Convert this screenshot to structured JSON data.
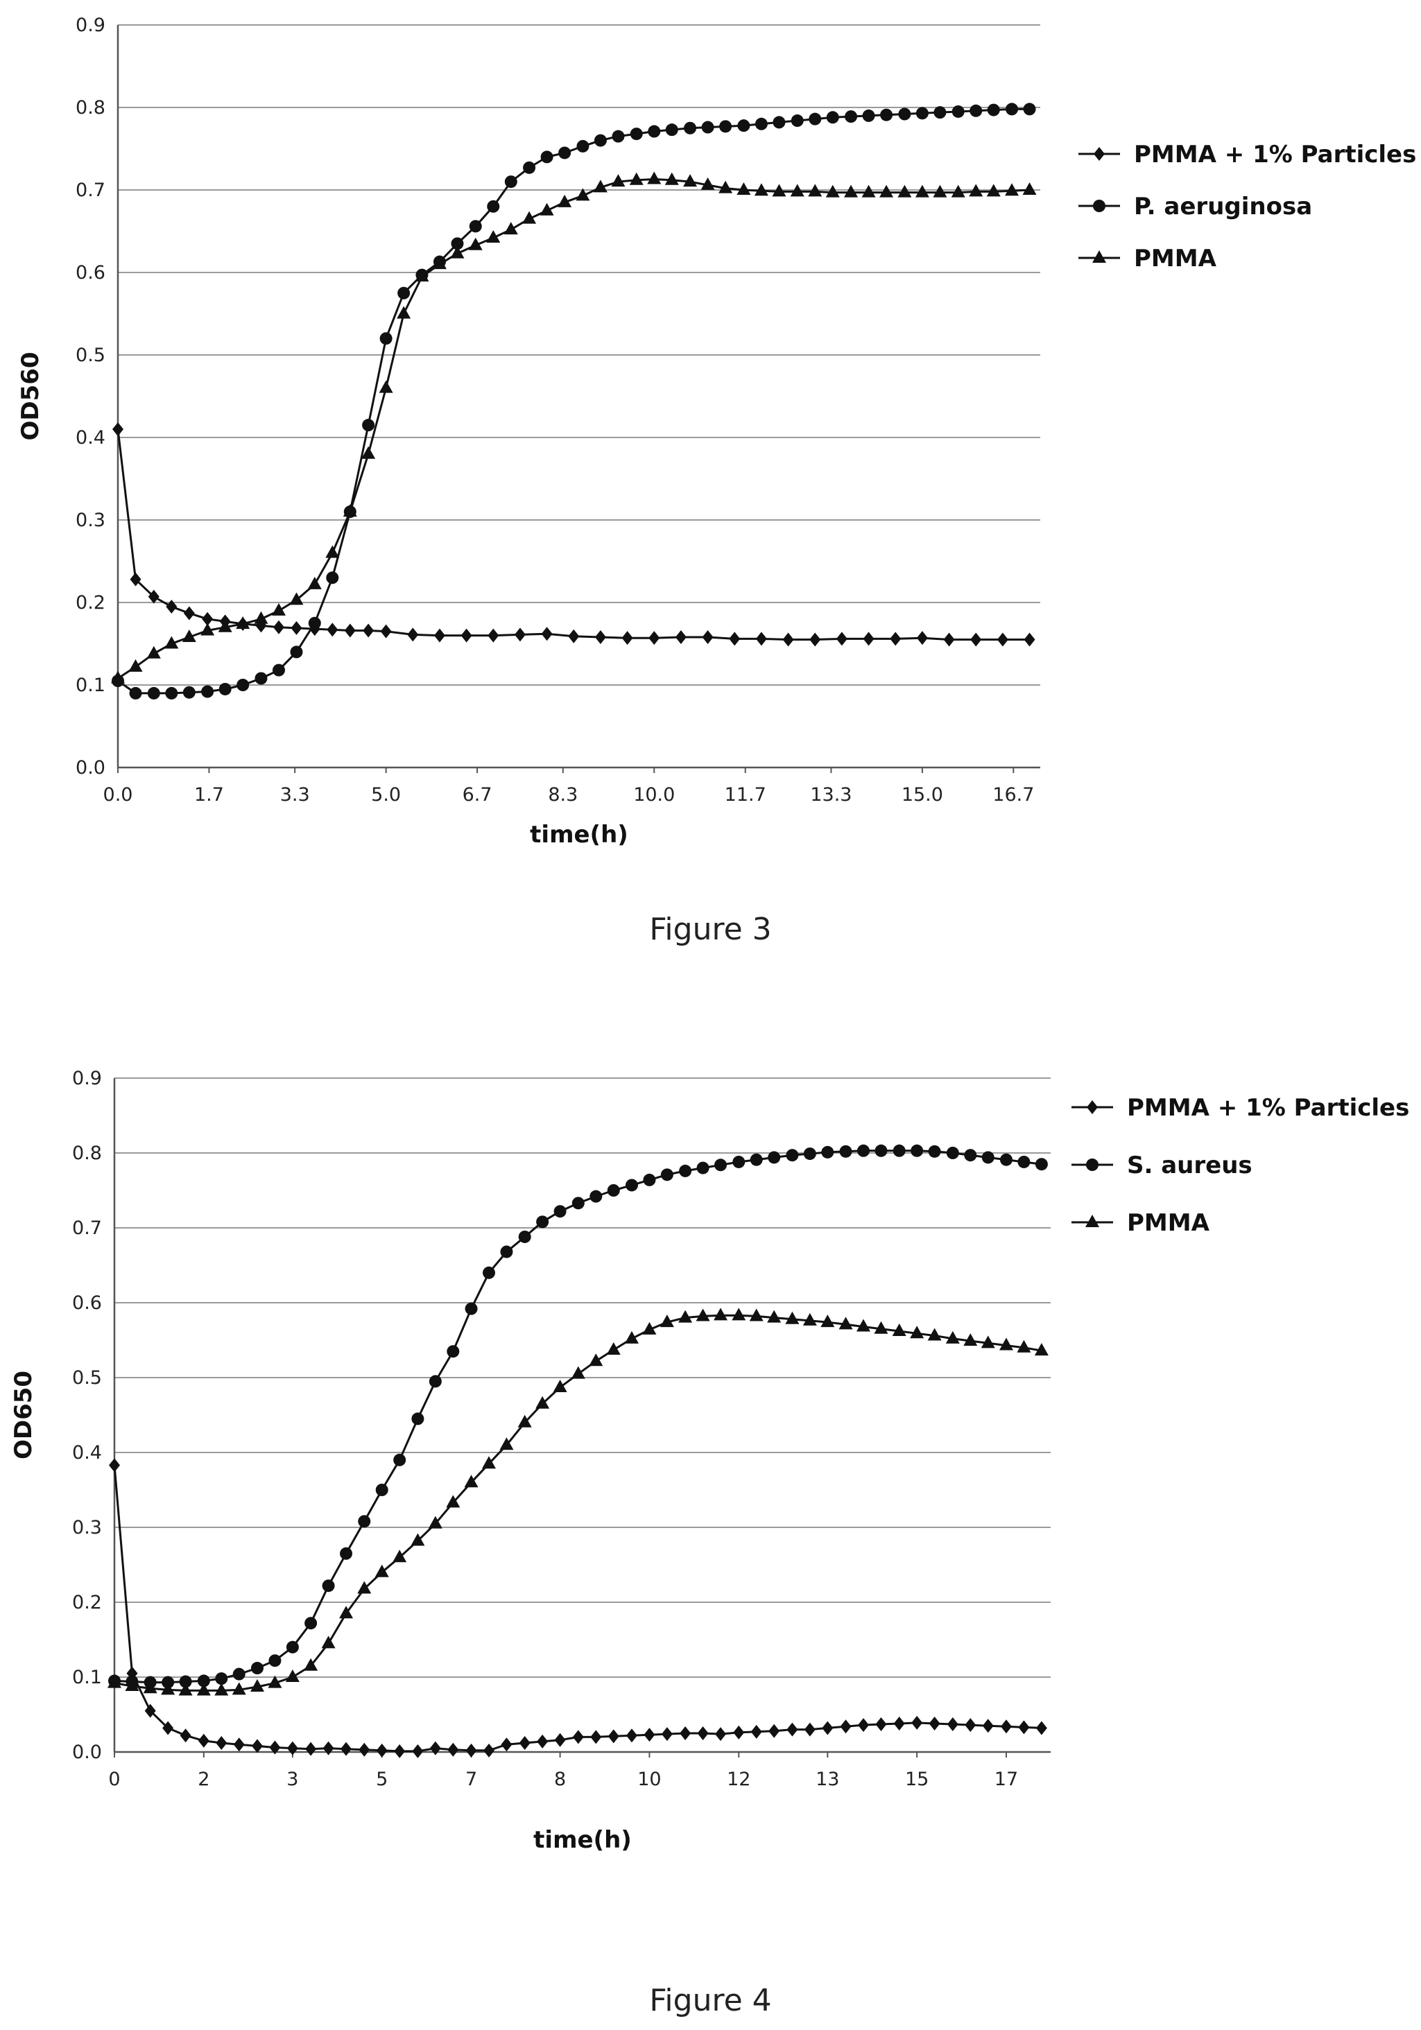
{
  "chart_data": [
    {
      "type": "line",
      "caption": "Figure 3",
      "xlabel": "time(h)",
      "ylabel": "OD560",
      "xlim": [
        0,
        17.2
      ],
      "ylim": [
        0,
        0.9
      ],
      "yticks": [
        "0.0",
        "0.1",
        "0.2",
        "0.3",
        "0.4",
        "0.5",
        "0.6",
        "0.7",
        "0.8",
        "0.9"
      ],
      "xticks": [
        {
          "v": 0.0,
          "label": "0.0"
        },
        {
          "v": 1.7,
          "label": "1.7"
        },
        {
          "v": 3.3,
          "label": "3.3"
        },
        {
          "v": 5.0,
          "label": "5.0"
        },
        {
          "v": 6.7,
          "label": "6.7"
        },
        {
          "v": 8.3,
          "label": "8.3"
        },
        {
          "v": 10.0,
          "label": "10.0"
        },
        {
          "v": 11.7,
          "label": "11.7"
        },
        {
          "v": 13.3,
          "label": "13.3"
        },
        {
          "v": 15.0,
          "label": "15.0"
        },
        {
          "v": 16.7,
          "label": "16.7"
        }
      ],
      "grid": "horizontal",
      "legend": "right",
      "series": [
        {
          "name": "PMMA + 1% Particles",
          "marker": "diamond",
          "x": [
            0,
            0.33,
            0.67,
            1.0,
            1.33,
            1.67,
            2.0,
            2.33,
            2.67,
            3.0,
            3.33,
            3.67,
            4.0,
            4.33,
            4.67,
            5.0,
            5.5,
            6.0,
            6.5,
            7.0,
            7.5,
            8.0,
            8.5,
            9.0,
            9.5,
            10.0,
            10.5,
            11.0,
            11.5,
            12.0,
            12.5,
            13.0,
            13.5,
            14.0,
            14.5,
            15.0,
            15.5,
            16.0,
            16.5,
            17.0
          ],
          "y": [
            0.41,
            0.228,
            0.207,
            0.195,
            0.187,
            0.18,
            0.177,
            0.174,
            0.172,
            0.17,
            0.169,
            0.168,
            0.167,
            0.166,
            0.166,
            0.165,
            0.161,
            0.16,
            0.16,
            0.16,
            0.161,
            0.162,
            0.159,
            0.158,
            0.157,
            0.157,
            0.158,
            0.158,
            0.156,
            0.156,
            0.155,
            0.155,
            0.156,
            0.156,
            0.156,
            0.157,
            0.155,
            0.155,
            0.155,
            0.155
          ]
        },
        {
          "name": "P. aeruginosa",
          "marker": "circle",
          "x": [
            0,
            0.33,
            0.67,
            1.0,
            1.33,
            1.67,
            2.0,
            2.33,
            2.67,
            3.0,
            3.33,
            3.67,
            4.0,
            4.33,
            4.67,
            5.0,
            5.33,
            5.67,
            6.0,
            6.33,
            6.67,
            7.0,
            7.33,
            7.67,
            8.0,
            8.33,
            8.67,
            9.0,
            9.33,
            9.67,
            10.0,
            10.33,
            10.67,
            11.0,
            11.33,
            11.67,
            12.0,
            12.33,
            12.67,
            13.0,
            13.33,
            13.67,
            14.0,
            14.33,
            14.67,
            15.0,
            15.33,
            15.67,
            16.0,
            16.33,
            16.67,
            17.0
          ],
          "y": [
            0.105,
            0.09,
            0.09,
            0.09,
            0.091,
            0.092,
            0.095,
            0.1,
            0.108,
            0.118,
            0.14,
            0.175,
            0.23,
            0.31,
            0.415,
            0.52,
            0.575,
            0.597,
            0.613,
            0.635,
            0.656,
            0.68,
            0.71,
            0.727,
            0.74,
            0.745,
            0.753,
            0.76,
            0.765,
            0.768,
            0.771,
            0.773,
            0.775,
            0.776,
            0.777,
            0.778,
            0.78,
            0.782,
            0.784,
            0.786,
            0.788,
            0.789,
            0.79,
            0.791,
            0.792,
            0.793,
            0.794,
            0.795,
            0.796,
            0.797,
            0.798,
            0.798
          ]
        },
        {
          "name": "PMMA",
          "marker": "triangle",
          "x": [
            0,
            0.33,
            0.67,
            1.0,
            1.33,
            1.67,
            2.0,
            2.33,
            2.67,
            3.0,
            3.33,
            3.67,
            4.0,
            4.33,
            4.67,
            5.0,
            5.33,
            5.67,
            6.0,
            6.33,
            6.67,
            7.0,
            7.33,
            7.67,
            8.0,
            8.33,
            8.67,
            9.0,
            9.33,
            9.67,
            10.0,
            10.33,
            10.67,
            11.0,
            11.33,
            11.67,
            12.0,
            12.33,
            12.67,
            13.0,
            13.33,
            13.67,
            14.0,
            14.33,
            14.67,
            15.0,
            15.33,
            15.67,
            16.0,
            16.33,
            16.67,
            17.0
          ],
          "y": [
            0.108,
            0.122,
            0.138,
            0.15,
            0.158,
            0.166,
            0.17,
            0.174,
            0.18,
            0.19,
            0.203,
            0.222,
            0.26,
            0.31,
            0.38,
            0.46,
            0.55,
            0.595,
            0.61,
            0.623,
            0.633,
            0.642,
            0.652,
            0.665,
            0.675,
            0.685,
            0.693,
            0.703,
            0.71,
            0.712,
            0.713,
            0.712,
            0.71,
            0.706,
            0.702,
            0.7,
            0.699,
            0.698,
            0.698,
            0.698,
            0.697,
            0.697,
            0.697,
            0.697,
            0.697,
            0.697,
            0.697,
            0.697,
            0.698,
            0.698,
            0.699,
            0.7
          ]
        }
      ]
    },
    {
      "type": "line",
      "caption": "Figure 4",
      "xlabel": "time(h)",
      "ylabel": "OD650",
      "xlim": [
        0,
        17.5
      ],
      "ylim": [
        0,
        0.9
      ],
      "yticks": [
        "0.0",
        "0.1",
        "0.2",
        "0.3",
        "0.4",
        "0.5",
        "0.6",
        "0.7",
        "0.8",
        "0.9"
      ],
      "xticks": [
        {
          "v": 0,
          "label": "0"
        },
        {
          "v": 1.67,
          "label": "2"
        },
        {
          "v": 3.33,
          "label": "3"
        },
        {
          "v": 5.0,
          "label": "5"
        },
        {
          "v": 6.67,
          "label": "7"
        },
        {
          "v": 8.33,
          "label": "8"
        },
        {
          "v": 10.0,
          "label": "10"
        },
        {
          "v": 11.67,
          "label": "12"
        },
        {
          "v": 13.33,
          "label": "13"
        },
        {
          "v": 15.0,
          "label": "15"
        },
        {
          "v": 16.67,
          "label": "17"
        }
      ],
      "grid": "horizontal",
      "legend": "right",
      "series": [
        {
          "name": "PMMA + 1% Particles",
          "marker": "diamond",
          "x": [
            0,
            0.33,
            0.67,
            1.0,
            1.33,
            1.67,
            2.0,
            2.33,
            2.67,
            3.0,
            3.33,
            3.67,
            4.0,
            4.33,
            4.67,
            5.0,
            5.33,
            5.67,
            6.0,
            6.33,
            6.67,
            7.0,
            7.33,
            7.67,
            8.0,
            8.33,
            8.67,
            9.0,
            9.33,
            9.67,
            10.0,
            10.33,
            10.67,
            11.0,
            11.33,
            11.67,
            12.0,
            12.33,
            12.67,
            13.0,
            13.33,
            13.67,
            14.0,
            14.33,
            14.67,
            15.0,
            15.33,
            15.67,
            16.0,
            16.33,
            16.67,
            17.0,
            17.33
          ],
          "y": [
            0.383,
            0.105,
            0.055,
            0.032,
            0.022,
            0.015,
            0.012,
            0.01,
            0.008,
            0.006,
            0.005,
            0.004,
            0.005,
            0.004,
            0.003,
            0.002,
            0.001,
            0.001,
            0.005,
            0.003,
            0.002,
            0.002,
            0.01,
            0.012,
            0.014,
            0.016,
            0.02,
            0.02,
            0.021,
            0.022,
            0.023,
            0.024,
            0.025,
            0.025,
            0.024,
            0.026,
            0.027,
            0.028,
            0.03,
            0.03,
            0.032,
            0.034,
            0.036,
            0.037,
            0.038,
            0.039,
            0.038,
            0.037,
            0.036,
            0.035,
            0.034,
            0.033,
            0.032
          ]
        },
        {
          "name": "S. aureus",
          "marker": "circle",
          "x": [
            0,
            0.33,
            0.67,
            1.0,
            1.33,
            1.67,
            2.0,
            2.33,
            2.67,
            3.0,
            3.33,
            3.67,
            4.0,
            4.33,
            4.67,
            5.0,
            5.33,
            5.67,
            6.0,
            6.33,
            6.67,
            7.0,
            7.33,
            7.67,
            8.0,
            8.33,
            8.67,
            9.0,
            9.33,
            9.67,
            10.0,
            10.33,
            10.67,
            11.0,
            11.33,
            11.67,
            12.0,
            12.33,
            12.67,
            13.0,
            13.33,
            13.67,
            14.0,
            14.33,
            14.67,
            15.0,
            15.33,
            15.67,
            16.0,
            16.33,
            16.67,
            17.0,
            17.33
          ],
          "y": [
            0.095,
            0.094,
            0.093,
            0.093,
            0.094,
            0.095,
            0.098,
            0.104,
            0.112,
            0.122,
            0.14,
            0.172,
            0.222,
            0.265,
            0.308,
            0.35,
            0.39,
            0.445,
            0.495,
            0.535,
            0.592,
            0.64,
            0.668,
            0.688,
            0.708,
            0.722,
            0.733,
            0.742,
            0.75,
            0.757,
            0.764,
            0.771,
            0.776,
            0.78,
            0.784,
            0.788,
            0.791,
            0.794,
            0.797,
            0.799,
            0.801,
            0.802,
            0.803,
            0.803,
            0.803,
            0.803,
            0.802,
            0.8,
            0.797,
            0.794,
            0.791,
            0.788,
            0.785
          ]
        },
        {
          "name": "PMMA",
          "marker": "triangle",
          "x": [
            0,
            0.33,
            0.67,
            1.0,
            1.33,
            1.67,
            2.0,
            2.33,
            2.67,
            3.0,
            3.33,
            3.67,
            4.0,
            4.33,
            4.67,
            5.0,
            5.33,
            5.67,
            6.0,
            6.33,
            6.67,
            7.0,
            7.33,
            7.67,
            8.0,
            8.33,
            8.67,
            9.0,
            9.33,
            9.67,
            10.0,
            10.33,
            10.67,
            11.0,
            11.33,
            11.67,
            12.0,
            12.33,
            12.67,
            13.0,
            13.33,
            13.67,
            14.0,
            14.33,
            14.67,
            15.0,
            15.33,
            15.67,
            16.0,
            16.33,
            16.67,
            17.0,
            17.33
          ],
          "y": [
            0.092,
            0.088,
            0.085,
            0.083,
            0.082,
            0.082,
            0.082,
            0.083,
            0.087,
            0.092,
            0.1,
            0.115,
            0.145,
            0.185,
            0.218,
            0.24,
            0.26,
            0.282,
            0.305,
            0.333,
            0.36,
            0.385,
            0.41,
            0.44,
            0.465,
            0.487,
            0.505,
            0.522,
            0.537,
            0.552,
            0.564,
            0.574,
            0.58,
            0.582,
            0.583,
            0.583,
            0.582,
            0.58,
            0.578,
            0.576,
            0.574,
            0.571,
            0.568,
            0.565,
            0.562,
            0.559,
            0.556,
            0.552,
            0.549,
            0.546,
            0.543,
            0.54,
            0.536
          ]
        }
      ]
    }
  ],
  "colors": {
    "line": "#111111",
    "grid": "#9a9a9a",
    "axis": "#555555"
  }
}
